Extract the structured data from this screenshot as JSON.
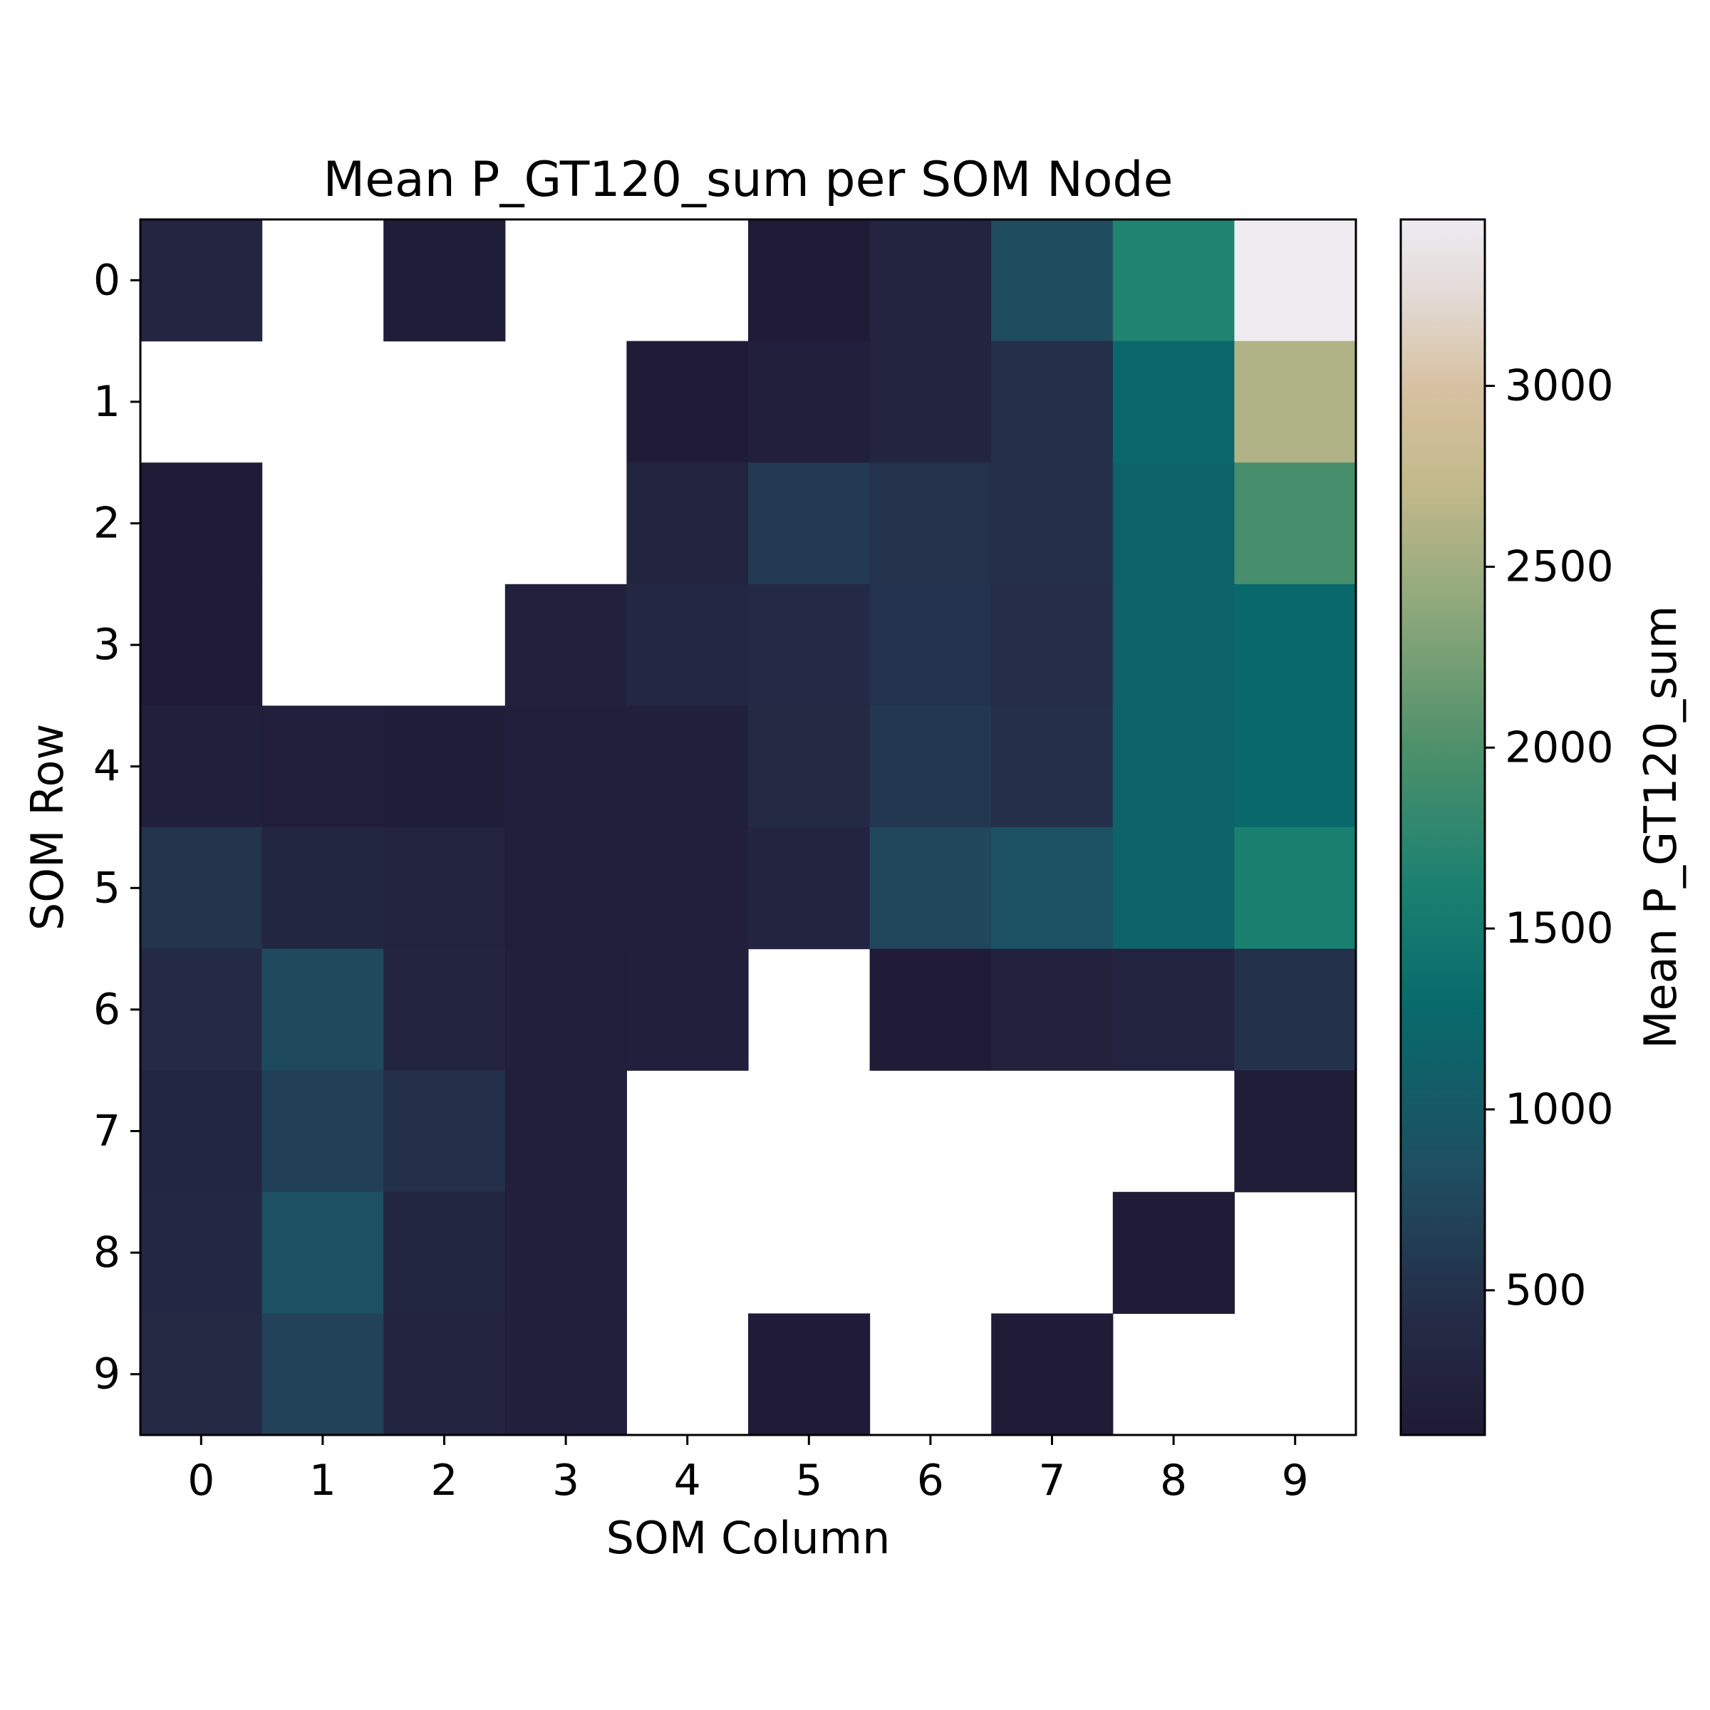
{
  "chart_data": {
    "type": "heatmap",
    "title": "Mean P_GT120_sum per SOM Node",
    "xlabel": "SOM Column",
    "ylabel": "SOM Row",
    "x_ticks": [
      "0",
      "1",
      "2",
      "3",
      "4",
      "5",
      "6",
      "7",
      "8",
      "9"
    ],
    "y_ticks": [
      "0",
      "1",
      "2",
      "3",
      "4",
      "5",
      "6",
      "7",
      "8",
      "9"
    ],
    "colorbar": {
      "label": "Mean P_GT120_sum",
      "ticks": [
        500,
        1000,
        1500,
        2000,
        2500,
        3000
      ],
      "range": [
        100,
        3460
      ],
      "colormap": "cubehelix-like (dark navy → teal → green → tan → white)"
    },
    "grid": false,
    "values": [
      [
        310,
        null,
        150,
        null,
        null,
        140,
        290,
        800,
        1650,
        3460
      ],
      [
        null,
        null,
        null,
        null,
        130,
        200,
        300,
        480,
        1230,
        2600
      ],
      [
        140,
        null,
        null,
        null,
        280,
        600,
        500,
        470,
        1150,
        1950
      ],
      [
        140,
        null,
        null,
        230,
        350,
        400,
        520,
        450,
        1150,
        1250
      ],
      [
        210,
        170,
        150,
        180,
        210,
        380,
        570,
        480,
        1150,
        1250
      ],
      [
        530,
        320,
        260,
        180,
        190,
        300,
        750,
        870,
        1150,
        1600
      ],
      [
        400,
        780,
        300,
        190,
        190,
        null,
        140,
        240,
        260,
        490
      ],
      [
        330,
        660,
        470,
        190,
        null,
        null,
        null,
        null,
        null,
        150
      ],
      [
        350,
        850,
        320,
        190,
        null,
        null,
        null,
        null,
        140,
        null
      ],
      [
        380,
        690,
        300,
        190,
        null,
        140,
        null,
        140,
        null,
        null
      ]
    ]
  }
}
